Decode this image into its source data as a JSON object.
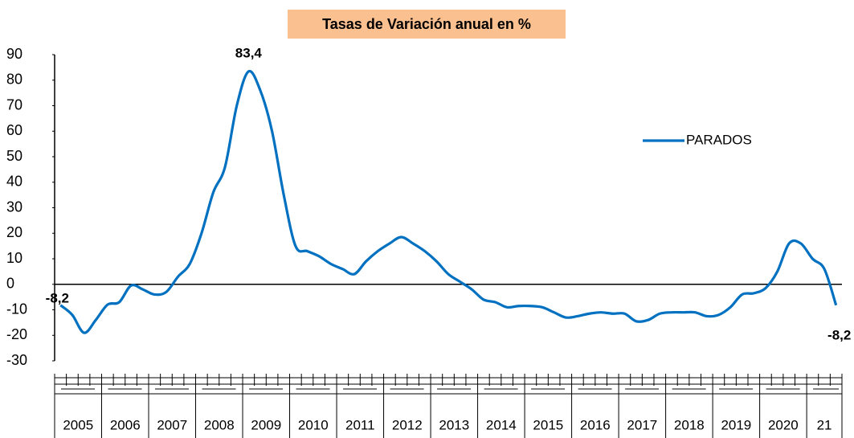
{
  "chart_data": {
    "type": "line",
    "title": "Tasas de Variación anual en %",
    "title_background": "#fac090",
    "categories": [
      "2005",
      "2006",
      "2007",
      "2008",
      "2009",
      "2010",
      "2011",
      "2012",
      "2013",
      "2014",
      "2015",
      "2016",
      "2017",
      "2018",
      "2019",
      "2020",
      "21"
    ],
    "x": [
      2005.125,
      2005.375,
      2005.625,
      2005.875,
      2006.125,
      2006.375,
      2006.625,
      2006.875,
      2007.125,
      2007.375,
      2007.625,
      2007.875,
      2008.125,
      2008.375,
      2008.625,
      2008.875,
      2009.125,
      2009.375,
      2009.625,
      2009.875,
      2010.125,
      2010.375,
      2010.625,
      2010.875,
      2011.125,
      2011.375,
      2011.625,
      2011.875,
      2012.125,
      2012.375,
      2012.625,
      2012.875,
      2013.125,
      2013.375,
      2013.625,
      2013.875,
      2014.125,
      2014.375,
      2014.625,
      2014.875,
      2015.125,
      2015.375,
      2015.625,
      2015.875,
      2016.125,
      2016.375,
      2016.625,
      2016.875,
      2017.125,
      2017.375,
      2017.625,
      2017.875,
      2018.125,
      2018.375,
      2018.625,
      2018.875,
      2019.125,
      2019.375,
      2019.625,
      2019.875,
      2020.125,
      2020.375,
      2020.625,
      2020.875,
      2021.125,
      2021.375,
      2021.625
    ],
    "series": [
      {
        "name": "PARADOS",
        "color": "#0070c0",
        "values": [
          -8.2,
          -12,
          -19,
          -14,
          -8,
          -7,
          -0.5,
          -2,
          -4,
          -3,
          3,
          8,
          20,
          36,
          46,
          70,
          83.4,
          76,
          60,
          35,
          15,
          13,
          11,
          8,
          6,
          4,
          9,
          13,
          16,
          18.5,
          16,
          13,
          9,
          4,
          1,
          -2,
          -6,
          -7,
          -9,
          -8.5,
          -8.5,
          -9,
          -11,
          -13,
          -12.5,
          -11.5,
          -11,
          -11.5,
          -11.5,
          -14.5,
          -14,
          -11.5,
          -11,
          -11,
          -11,
          -12.5,
          -12,
          -9,
          -4,
          -3.5,
          -1.5,
          5,
          16,
          16,
          10,
          6,
          -8.2
        ],
        "value_labels": [
          "-8,2",
          null,
          null,
          null,
          null,
          null,
          null,
          null,
          null,
          null,
          null,
          null,
          null,
          null,
          null,
          null,
          "83,4",
          null,
          null,
          null,
          null,
          null,
          null,
          null,
          null,
          null,
          null,
          null,
          null,
          null,
          null,
          null,
          null,
          null,
          null,
          null,
          null,
          null,
          null,
          null,
          null,
          null,
          null,
          null,
          null,
          null,
          null,
          null,
          null,
          null,
          null,
          null,
          null,
          null,
          null,
          null,
          null,
          null,
          null,
          null,
          null,
          null,
          null,
          null,
          null,
          null,
          "-8,2"
        ]
      }
    ],
    "xlim": [
      2005,
      2021.75
    ],
    "ylim": [
      -30,
      90
    ],
    "yticks": [
      -30,
      -20,
      -10,
      0,
      10,
      20,
      30,
      40,
      50,
      60,
      70,
      80,
      90
    ],
    "negative_tick_color": "#ff0000",
    "zero_line": true
  }
}
